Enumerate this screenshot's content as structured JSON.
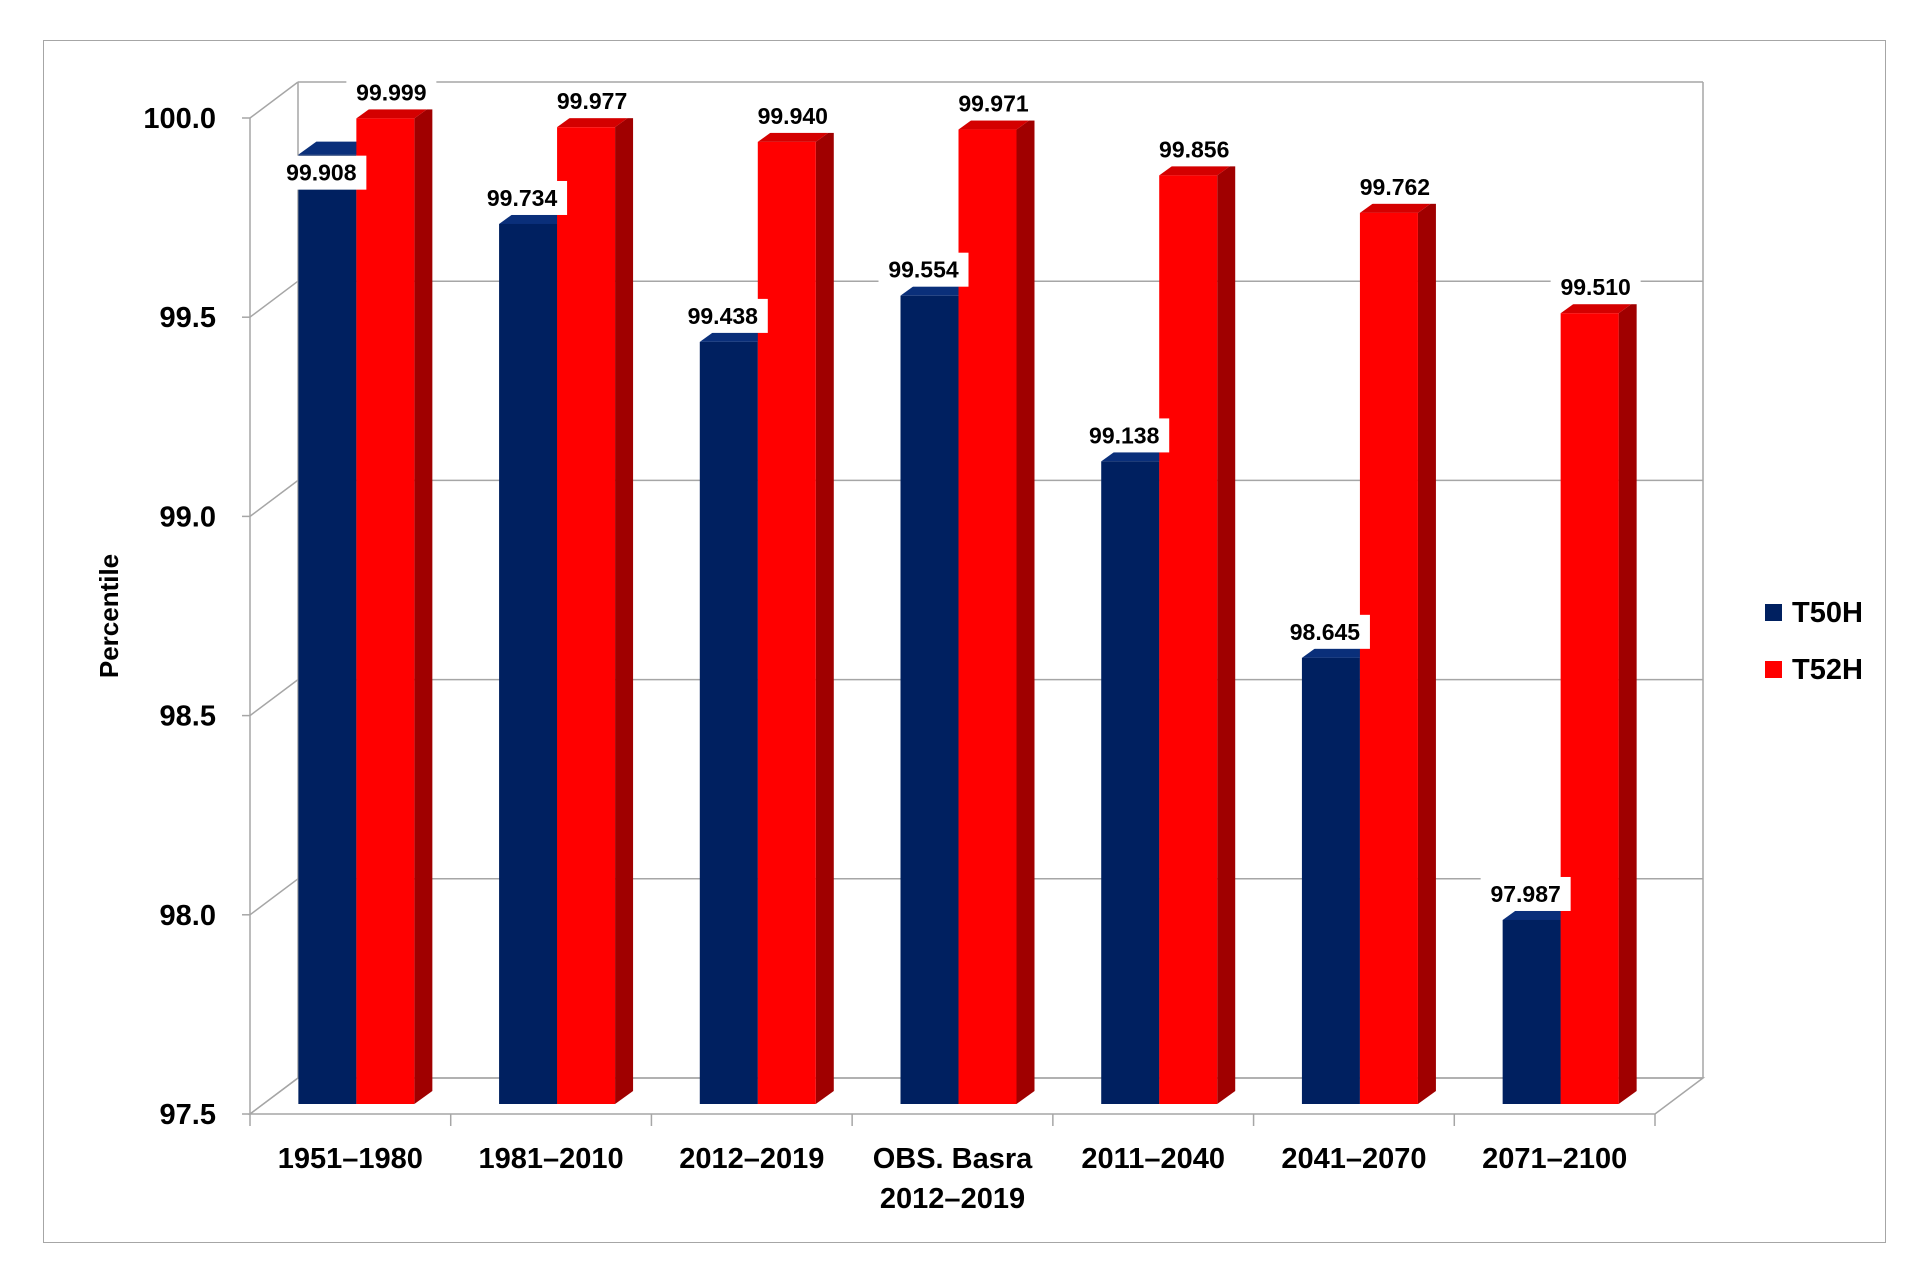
{
  "chart_data": {
    "type": "bar",
    "title": "",
    "xlabel": "",
    "ylabel": "Percentile",
    "ylim": [
      97.5,
      100.0
    ],
    "yticks": [
      "97.5",
      "98.0",
      "98.5",
      "99.0",
      "99.5",
      "100.0"
    ],
    "ytick_values": [
      97.5,
      98.0,
      98.5,
      99.0,
      99.5,
      100.0
    ],
    "categories": [
      [
        "1951–1980"
      ],
      [
        "1981–2010"
      ],
      [
        "2012–2019"
      ],
      [
        "OBS. Basra",
        "2012–2019"
      ],
      [
        "2011–2040"
      ],
      [
        "2041–2070"
      ],
      [
        "2071–2100"
      ]
    ],
    "series": [
      {
        "name": "T50H",
        "color": "#002060",
        "side": "#001540",
        "top": "#0a2f7a",
        "values": [
          99.908,
          99.734,
          99.438,
          99.554,
          99.138,
          98.645,
          97.987
        ],
        "labels": [
          "99.908",
          "99.734",
          "99.438",
          "99.554",
          "99.138",
          "98.645",
          "97.987"
        ]
      },
      {
        "name": "T52H",
        "color": "#ff0000",
        "side": "#a00000",
        "top": "#d40000",
        "values": [
          99.999,
          99.977,
          99.94,
          99.971,
          99.856,
          99.762,
          99.51
        ],
        "labels": [
          "99.999",
          "99.977",
          "99.940",
          "99.971",
          "99.856",
          "99.762",
          "99.510"
        ]
      }
    ],
    "legend_position": "right",
    "grid": true
  }
}
